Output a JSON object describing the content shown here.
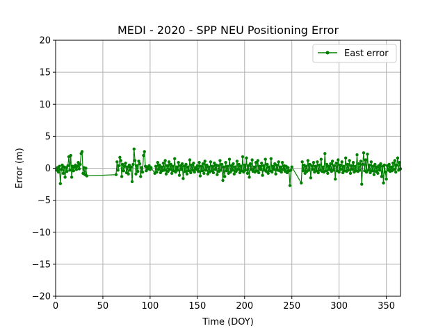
{
  "chart_data": {
    "type": "line",
    "title": "MEDI - 2020 - SPP NEU Positioning Error",
    "xlabel": "Time (DOY)",
    "ylabel": "Error (m)",
    "xlim": [
      0,
      365
    ],
    "ylim": [
      -20,
      20
    ],
    "xticks": [
      0,
      50,
      100,
      150,
      200,
      250,
      300,
      350
    ],
    "yticks": [
      -20,
      -15,
      -10,
      -5,
      0,
      5,
      10,
      15,
      20
    ],
    "grid": true,
    "legend_position": "top-right",
    "series": [
      {
        "name": "East error",
        "color": "#008000",
        "marker": "circle",
        "points": [
          [
            1,
            -0.3
          ],
          [
            2,
            0.1
          ],
          [
            3,
            -0.6
          ],
          [
            4,
            0.3
          ],
          [
            5,
            -2.4
          ],
          [
            6,
            -0.2
          ],
          [
            7,
            0.5
          ],
          [
            8,
            -0.8
          ],
          [
            9,
            0.2
          ],
          [
            10,
            -1.4
          ],
          [
            11,
            0.1
          ],
          [
            12,
            -0.5
          ],
          [
            13,
            0.4
          ],
          [
            14,
            1.8
          ],
          [
            15,
            -0.3
          ],
          [
            16,
            2.0
          ],
          [
            17,
            -1.4
          ],
          [
            18,
            0.3
          ],
          [
            19,
            -0.4
          ],
          [
            20,
            0.2
          ],
          [
            21,
            0.5
          ],
          [
            22,
            -0.2
          ],
          [
            23,
            0.3
          ],
          [
            24,
            0.9
          ],
          [
            25,
            -0.1
          ],
          [
            26,
            0.6
          ],
          [
            27,
            2.3
          ],
          [
            28,
            2.6
          ],
          [
            29,
            -0.8
          ],
          [
            30,
            0.1
          ],
          [
            31,
            -1.0
          ],
          [
            32,
            0.0
          ],
          [
            33,
            -1.2
          ],
          [
            64,
            -1.0
          ],
          [
            65,
            1.0
          ],
          [
            66,
            -0.3
          ],
          [
            67,
            0.4
          ],
          [
            68,
            1.7
          ],
          [
            69,
            1.2
          ],
          [
            70,
            -1.3
          ],
          [
            71,
            0.6
          ],
          [
            72,
            -0.4
          ],
          [
            73,
            0.3
          ],
          [
            74,
            0.8
          ],
          [
            75,
            -0.7
          ],
          [
            76,
            0.2
          ],
          [
            77,
            -0.9
          ],
          [
            78,
            0.5
          ],
          [
            79,
            -0.3
          ],
          [
            80,
            0.2
          ],
          [
            81,
            -2.1
          ],
          [
            82,
            0.6
          ],
          [
            83,
            3.0
          ],
          [
            84,
            1.2
          ],
          [
            85,
            -0.9
          ],
          [
            86,
            0.4
          ],
          [
            87,
            -0.5
          ],
          [
            88,
            1.1
          ],
          [
            89,
            0.7
          ],
          [
            90,
            -1.3
          ],
          [
            91,
            0.1
          ],
          [
            92,
            -0.6
          ],
          [
            93,
            2.0
          ],
          [
            94,
            2.6
          ],
          [
            95,
            0.3
          ],
          [
            96,
            -0.4
          ],
          [
            97,
            0.2
          ],
          [
            98,
            -0.1
          ],
          [
            99,
            0.4
          ],
          [
            100,
            -0.2
          ],
          [
            101,
            0.1
          ],
          [
            105,
            -0.8
          ],
          [
            106,
            0.3
          ],
          [
            107,
            -0.6
          ],
          [
            108,
            0.9
          ],
          [
            109,
            -0.2
          ],
          [
            110,
            0.5
          ],
          [
            111,
            -0.7
          ],
          [
            112,
            0.2
          ],
          [
            113,
            -0.4
          ],
          [
            114,
            0.8
          ],
          [
            115,
            -0.3
          ],
          [
            116,
            1.2
          ],
          [
            117,
            -0.9
          ],
          [
            118,
            0.4
          ],
          [
            119,
            -0.5
          ],
          [
            120,
            1.0
          ],
          [
            121,
            -0.2
          ],
          [
            122,
            0.6
          ],
          [
            123,
            -0.8
          ],
          [
            124,
            0.3
          ],
          [
            125,
            -0.4
          ],
          [
            126,
            1.5
          ],
          [
            127,
            -0.6
          ],
          [
            128,
            0.2
          ],
          [
            129,
            -0.3
          ],
          [
            130,
            0.9
          ],
          [
            131,
            -1.1
          ],
          [
            132,
            0.4
          ],
          [
            133,
            -0.2
          ],
          [
            134,
            0.7
          ],
          [
            135,
            -1.6
          ],
          [
            136,
            0.3
          ],
          [
            137,
            -0.5
          ],
          [
            138,
            0.6
          ],
          [
            139,
            -0.9
          ],
          [
            140,
            0.2
          ],
          [
            141,
            -0.4
          ],
          [
            142,
            1.3
          ],
          [
            143,
            -0.7
          ],
          [
            144,
            0.5
          ],
          [
            145,
            -0.3
          ],
          [
            146,
            0.8
          ],
          [
            147,
            -0.6
          ],
          [
            148,
            0.1
          ],
          [
            149,
            -0.2
          ],
          [
            150,
            0.4
          ],
          [
            151,
            -0.5
          ],
          [
            152,
            0.9
          ],
          [
            153,
            -1.2
          ],
          [
            154,
            0.3
          ],
          [
            155,
            -0.4
          ],
          [
            156,
            0.7
          ],
          [
            157,
            -0.8
          ],
          [
            158,
            1.1
          ],
          [
            159,
            -0.3
          ],
          [
            160,
            0.5
          ],
          [
            161,
            -0.9
          ],
          [
            162,
            0.2
          ],
          [
            163,
            -0.6
          ],
          [
            164,
            1.0
          ],
          [
            165,
            -0.4
          ],
          [
            166,
            0.3
          ],
          [
            167,
            -0.7
          ],
          [
            168,
            0.8
          ],
          [
            169,
            -0.2
          ],
          [
            170,
            0.5
          ],
          [
            171,
            -1.0
          ],
          [
            172,
            0.4
          ],
          [
            173,
            -0.5
          ],
          [
            174,
            1.2
          ],
          [
            175,
            -0.3
          ],
          [
            176,
            0.6
          ],
          [
            177,
            -1.9
          ],
          [
            178,
            0.2
          ],
          [
            179,
            -1.3
          ],
          [
            180,
            0.9
          ],
          [
            181,
            -0.4
          ],
          [
            182,
            0.3
          ],
          [
            183,
            -0.8
          ],
          [
            184,
            1.4
          ],
          [
            185,
            -0.6
          ],
          [
            186,
            0.4
          ],
          [
            187,
            -0.3
          ],
          [
            188,
            0.7
          ],
          [
            189,
            -0.9
          ],
          [
            190,
            0.2
          ],
          [
            191,
            -0.5
          ],
          [
            192,
            1.1
          ],
          [
            193,
            -0.2
          ],
          [
            194,
            0.6
          ],
          [
            195,
            -0.7
          ],
          [
            196,
            0.3
          ],
          [
            197,
            -0.4
          ],
          [
            198,
            1.8
          ],
          [
            199,
            -0.6
          ],
          [
            200,
            0.5
          ],
          [
            201,
            -0.3
          ],
          [
            202,
            1.6
          ],
          [
            203,
            -0.8
          ],
          [
            204,
            0.4
          ],
          [
            205,
            -1.4
          ],
          [
            206,
            0.7
          ],
          [
            207,
            -0.2
          ],
          [
            208,
            1.3
          ],
          [
            209,
            -0.5
          ],
          [
            210,
            0.2
          ],
          [
            211,
            -0.6
          ],
          [
            212,
            0.9
          ],
          [
            213,
            -0.4
          ],
          [
            214,
            1.2
          ],
          [
            215,
            -0.7
          ],
          [
            216,
            0.3
          ],
          [
            217,
            -0.2
          ],
          [
            218,
            0.8
          ],
          [
            219,
            -1.1
          ],
          [
            220,
            0.4
          ],
          [
            221,
            -0.3
          ],
          [
            222,
            1.4
          ],
          [
            223,
            -0.5
          ],
          [
            224,
            0.6
          ],
          [
            225,
            -0.8
          ],
          [
            226,
            0.2
          ],
          [
            227,
            -0.4
          ],
          [
            228,
            1.5
          ],
          [
            229,
            -0.6
          ],
          [
            230,
            0.3
          ],
          [
            231,
            -0.2
          ],
          [
            232,
            0.7
          ],
          [
            233,
            -0.9
          ],
          [
            234,
            0.5
          ],
          [
            235,
            -0.3
          ],
          [
            236,
            1.0
          ],
          [
            237,
            -0.4
          ],
          [
            238,
            0.2
          ],
          [
            239,
            -0.6
          ],
          [
            240,
            0.9
          ],
          [
            241,
            -0.2
          ],
          [
            242,
            0.4
          ],
          [
            243,
            -0.5
          ],
          [
            244,
            0.3
          ],
          [
            245,
            -0.7
          ],
          [
            246,
            0.1
          ],
          [
            247,
            -0.4
          ],
          [
            248,
            -2.7
          ],
          [
            249,
            -0.3
          ],
          [
            250,
            0.2
          ],
          [
            260,
            -2.3
          ],
          [
            261,
            1.0
          ],
          [
            262,
            -0.4
          ],
          [
            263,
            0.5
          ],
          [
            264,
            -0.8
          ],
          [
            265,
            0.3
          ],
          [
            266,
            -0.5
          ],
          [
            267,
            1.2
          ],
          [
            268,
            -0.3
          ],
          [
            269,
            0.6
          ],
          [
            270,
            -1.5
          ],
          [
            271,
            0.4
          ],
          [
            272,
            -0.2
          ],
          [
            273,
            0.9
          ],
          [
            274,
            -0.6
          ],
          [
            275,
            0.3
          ],
          [
            276,
            -0.4
          ],
          [
            277,
            1.0
          ],
          [
            278,
            -0.7
          ],
          [
            279,
            0.5
          ],
          [
            280,
            -0.3
          ],
          [
            281,
            1.4
          ],
          [
            282,
            -0.5
          ],
          [
            283,
            0.2
          ],
          [
            284,
            -0.6
          ],
          [
            285,
            2.3
          ],
          [
            286,
            -0.4
          ],
          [
            287,
            0.6
          ],
          [
            288,
            -0.8
          ],
          [
            289,
            0.3
          ],
          [
            290,
            -0.2
          ],
          [
            291,
            0.7
          ],
          [
            292,
            -0.5
          ],
          [
            293,
            1.1
          ],
          [
            294,
            -0.3
          ],
          [
            295,
            0.4
          ],
          [
            296,
            -1.7
          ],
          [
            297,
            0.8
          ],
          [
            298,
            -0.4
          ],
          [
            299,
            1.3
          ],
          [
            300,
            -0.6
          ],
          [
            301,
            0.5
          ],
          [
            302,
            -0.2
          ],
          [
            303,
            1.0
          ],
          [
            304,
            -0.7
          ],
          [
            305,
            0.3
          ],
          [
            306,
            -0.4
          ],
          [
            307,
            1.6
          ],
          [
            308,
            -0.5
          ],
          [
            309,
            0.6
          ],
          [
            310,
            -0.3
          ],
          [
            311,
            1.2
          ],
          [
            312,
            -0.8
          ],
          [
            313,
            0.4
          ],
          [
            314,
            -0.2
          ],
          [
            315,
            0.9
          ],
          [
            316,
            -0.6
          ],
          [
            317,
            0.3
          ],
          [
            318,
            -0.4
          ],
          [
            319,
            2.1
          ],
          [
            320,
            -0.5
          ],
          [
            321,
            0.7
          ],
          [
            322,
            -0.3
          ],
          [
            323,
            1.1
          ],
          [
            324,
            -2.5
          ],
          [
            325,
            0.6
          ],
          [
            326,
            2.4
          ],
          [
            327,
            -0.4
          ],
          [
            328,
            1.3
          ],
          [
            329,
            -0.6
          ],
          [
            330,
            2.2
          ],
          [
            331,
            -0.3
          ],
          [
            332,
            0.5
          ],
          [
            333,
            -0.7
          ],
          [
            334,
            1.0
          ],
          [
            335,
            -0.4
          ],
          [
            336,
            0.3
          ],
          [
            337,
            -1.0
          ],
          [
            338,
            0.6
          ],
          [
            339,
            -0.5
          ],
          [
            340,
            0.2
          ],
          [
            341,
            -0.8
          ],
          [
            342,
            0.4
          ],
          [
            343,
            -0.3
          ],
          [
            344,
            0.7
          ],
          [
            345,
            -1.3
          ],
          [
            346,
            0.3
          ],
          [
            347,
            -2.3
          ],
          [
            348,
            0.5
          ],
          [
            349,
            -0.6
          ],
          [
            350,
            -1.7
          ],
          [
            351,
            0.4
          ],
          [
            352,
            -0.3
          ],
          [
            353,
            0.6
          ],
          [
            354,
            -0.5
          ],
          [
            355,
            0.2
          ],
          [
            356,
            -0.4
          ],
          [
            357,
            0.8
          ],
          [
            358,
            -0.2
          ],
          [
            359,
            1.2
          ],
          [
            360,
            -0.6
          ],
          [
            361,
            0.5
          ],
          [
            362,
            1.6
          ],
          [
            363,
            -0.3
          ],
          [
            364,
            0.9
          ],
          [
            365,
            -0.1
          ]
        ]
      }
    ]
  }
}
